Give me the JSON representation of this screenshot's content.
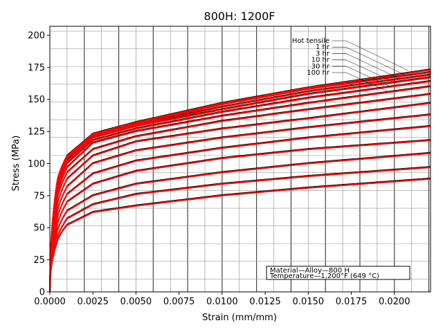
{
  "chart_data": {
    "type": "line",
    "title": "800H: 1200F",
    "xlabel": "Strain (mm/mm)",
    "ylabel": "Stress (MPa)",
    "xlim": [
      0.0,
      0.0221
    ],
    "ylim": [
      0,
      207
    ],
    "xticks": [
      0.0,
      0.0025,
      0.005,
      0.0075,
      0.01,
      0.0125,
      0.015,
      0.0175,
      0.02
    ],
    "xtick_labels": [
      "0.0000",
      "0.0025",
      "0.0050",
      "0.0075",
      "0.0100",
      "0.0125",
      "0.0150",
      "0.0175",
      "0.0200"
    ],
    "yticks": [
      0,
      25,
      50,
      75,
      100,
      125,
      150,
      175,
      200
    ],
    "ytick_labels": [
      "0",
      "25",
      "50",
      "75",
      "100",
      "125",
      "150",
      "175",
      "200"
    ],
    "series_color": "#ff0000",
    "reference_color": "#000000",
    "series": [
      {
        "values": [
          [
            0,
            0
          ],
          [
            0.0004,
            38
          ],
          [
            0.001,
            52
          ],
          [
            0.0025,
            62
          ],
          [
            0.005,
            67
          ],
          [
            0.01,
            75
          ],
          [
            0.015,
            81
          ],
          [
            0.0221,
            88
          ]
        ]
      },
      {
        "values": [
          [
            0,
            0
          ],
          [
            0.0004,
            40
          ],
          [
            0.001,
            57
          ],
          [
            0.0025,
            68
          ],
          [
            0.005,
            76
          ],
          [
            0.01,
            84
          ],
          [
            0.015,
            90
          ],
          [
            0.0221,
            97
          ]
        ]
      },
      {
        "values": [
          [
            0,
            0
          ],
          [
            0.0004,
            45
          ],
          [
            0.001,
            63
          ],
          [
            0.0025,
            75
          ],
          [
            0.005,
            84
          ],
          [
            0.01,
            93
          ],
          [
            0.015,
            100
          ],
          [
            0.0221,
            108
          ]
        ]
      },
      {
        "values": [
          [
            0,
            0
          ],
          [
            0.0004,
            50
          ],
          [
            0.001,
            70
          ],
          [
            0.0025,
            84
          ],
          [
            0.005,
            94
          ],
          [
            0.01,
            104
          ],
          [
            0.015,
            111
          ],
          [
            0.0221,
            118
          ]
        ]
      },
      {
        "values": [
          [
            0,
            0
          ],
          [
            0.0004,
            55
          ],
          [
            0.001,
            76
          ],
          [
            0.0025,
            92
          ],
          [
            0.005,
            102
          ],
          [
            0.01,
            112
          ],
          [
            0.015,
            120
          ],
          [
            0.0221,
            129
          ]
        ]
      },
      {
        "values": [
          [
            0,
            0
          ],
          [
            0.0004,
            60
          ],
          [
            0.001,
            82
          ],
          [
            0.0025,
            100
          ],
          [
            0.005,
            110
          ],
          [
            0.01,
            120
          ],
          [
            0.015,
            128
          ],
          [
            0.0221,
            138
          ]
        ]
      },
      {
        "values": [
          [
            0,
            0
          ],
          [
            0.0004,
            65
          ],
          [
            0.001,
            88
          ],
          [
            0.0025,
            106
          ],
          [
            0.005,
            117
          ],
          [
            0.01,
            127
          ],
          [
            0.015,
            135
          ],
          [
            0.0221,
            147
          ]
        ]
      },
      {
        "values": [
          [
            0,
            0
          ],
          [
            0.0004,
            70
          ],
          [
            0.001,
            93
          ],
          [
            0.0025,
            111
          ],
          [
            0.005,
            121
          ],
          [
            0.01,
            133
          ],
          [
            0.015,
            142
          ],
          [
            0.0221,
            154
          ]
        ]
      },
      {
        "values": [
          [
            0,
            0
          ],
          [
            0.0004,
            73
          ],
          [
            0.001,
            97
          ],
          [
            0.0025,
            116
          ],
          [
            0.005,
            125
          ],
          [
            0.01,
            137
          ],
          [
            0.015,
            147
          ],
          [
            0.0221,
            160
          ]
        ]
      },
      {
        "values": [
          [
            0,
            0
          ],
          [
            0.0004,
            76
          ],
          [
            0.001,
            100
          ],
          [
            0.0025,
            118
          ],
          [
            0.005,
            127
          ],
          [
            0.01,
            140
          ],
          [
            0.015,
            151
          ],
          [
            0.0221,
            164
          ]
        ]
      },
      {
        "values": [
          [
            0,
            0
          ],
          [
            0.0004,
            78
          ],
          [
            0.001,
            102
          ],
          [
            0.0025,
            120
          ],
          [
            0.005,
            129
          ],
          [
            0.01,
            142
          ],
          [
            0.015,
            154
          ],
          [
            0.0221,
            167
          ]
        ]
      },
      {
        "values": [
          [
            0,
            0
          ],
          [
            0.0004,
            80
          ],
          [
            0.001,
            104
          ],
          [
            0.0025,
            121
          ],
          [
            0.005,
            130
          ],
          [
            0.01,
            144
          ],
          [
            0.015,
            156
          ],
          [
            0.0221,
            169
          ]
        ]
      },
      {
        "values": [
          [
            0,
            0
          ],
          [
            0.0004,
            82
          ],
          [
            0.001,
            105
          ],
          [
            0.0025,
            122
          ],
          [
            0.005,
            131
          ],
          [
            0.01,
            146
          ],
          [
            0.015,
            158
          ],
          [
            0.0221,
            171
          ]
        ]
      },
      {
        "values": [
          [
            0,
            0
          ],
          [
            0.0004,
            84
          ],
          [
            0.001,
            106
          ],
          [
            0.0025,
            123
          ],
          [
            0.005,
            132
          ],
          [
            0.01,
            147
          ],
          [
            0.015,
            159
          ],
          [
            0.0221,
            173
          ]
        ]
      }
    ],
    "annotations": {
      "curve_labels": [
        "Hot tensile",
        "1 hr",
        "3 hr",
        "10 hr",
        "30 hr",
        "100 hr"
      ],
      "info_box": [
        "Material—Alloy—800 H",
        "Temperature—1,200°F (649 °C)"
      ]
    },
    "grid": true,
    "legend": "none"
  }
}
